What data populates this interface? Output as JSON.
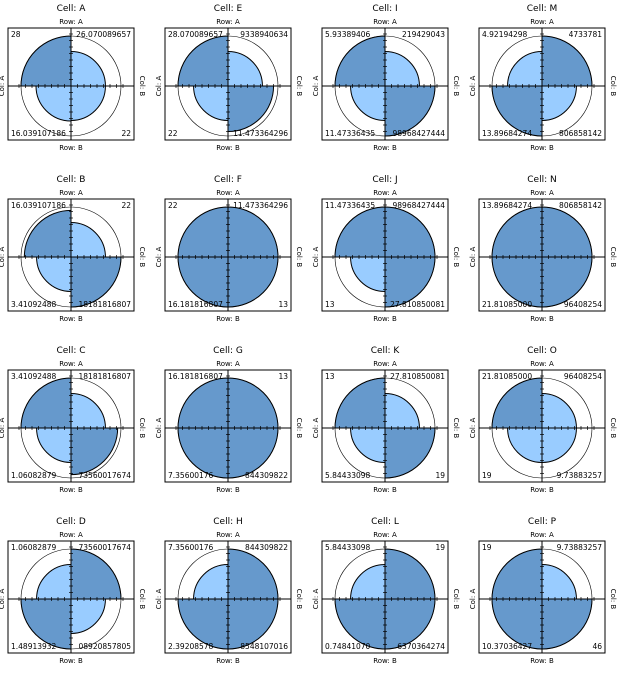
{
  "chart_data": {
    "type": "fourfold",
    "colors": {
      "dark": "#6699cc",
      "light": "#99ccff",
      "frame": "#000000"
    },
    "labels": {
      "row_top": "Row: A",
      "row_bottom": "Row: B",
      "col_left": "Col: A",
      "col_right": "Col: B"
    },
    "grid_order": [
      [
        "A",
        "E",
        "I",
        "M"
      ],
      [
        "B",
        "F",
        "J",
        "N"
      ],
      [
        "C",
        "G",
        "K",
        "O"
      ],
      [
        "D",
        "H",
        "L",
        "P"
      ]
    ],
    "cells": [
      {
        "title": "Cell: A",
        "values": {
          "tl": "28",
          "tr": "26.070089657",
          "bl": "16.039107186",
          "br": "22"
        },
        "quadrant_fraction": {
          "tl": 0.9,
          "tr": 0.62,
          "bl": 0.63,
          "br": 0.62
        }
      },
      {
        "title": "Cell: B",
        "values": {
          "tl": "16.039107186",
          "tr": "22",
          "bl": "3.41092488",
          "br": "18181816807"
        },
        "quadrant_fraction": {
          "tl": 0.84,
          "tr": 0.62,
          "bl": 0.62,
          "br": 0.9
        }
      },
      {
        "title": "Cell: C",
        "values": {
          "tl": "3.41092488",
          "tr": "18181816807",
          "bl": "1.06082879",
          "br": "73560017674"
        },
        "quadrant_fraction": {
          "tl": 0.9,
          "tr": 0.62,
          "bl": 0.62,
          "br": 0.84
        }
      },
      {
        "title": "Cell: D",
        "values": {
          "tl": "1.06082879",
          "tr": "73560017674",
          "bl": "1.48913932",
          "br": "08920857805"
        },
        "quadrant_fraction": {
          "tl": 0.62,
          "tr": 0.9,
          "bl": 0.9,
          "br": 0.62
        }
      },
      {
        "title": "Cell: E",
        "values": {
          "tl": "28.070089657",
          "tr": "9338940634",
          "bl": "22",
          "br": "11.473364296"
        },
        "quadrant_fraction": {
          "tl": 0.9,
          "tr": 0.62,
          "bl": 0.62,
          "br": 0.82
        }
      },
      {
        "title": "Cell: F",
        "values": {
          "tl": "22",
          "tr": "11.473364296",
          "bl": "16.181816807",
          "br": "13"
        },
        "quadrant_fraction": {
          "tl": 0.9,
          "tr": 0.9,
          "bl": 0.9,
          "br": 0.9
        }
      },
      {
        "title": "Cell: G",
        "values": {
          "tl": "16.181816807",
          "tr": "13",
          "bl": "7.35600176",
          "br": "844309822"
        },
        "quadrant_fraction": {
          "tl": 0.9,
          "tr": 0.9,
          "bl": 0.9,
          "br": 0.9
        }
      },
      {
        "title": "Cell: H",
        "values": {
          "tl": "7.35600176",
          "tr": "844309822",
          "bl": "2.39208578",
          "br": "8548107016"
        },
        "quadrant_fraction": {
          "tl": 0.62,
          "tr": 0.9,
          "bl": 0.9,
          "br": 0.9
        }
      },
      {
        "title": "Cell: I",
        "values": {
          "tl": "5.93389406",
          "tr": "219429043",
          "bl": "11.47336435",
          "br": "98968427444"
        },
        "quadrant_fraction": {
          "tl": 0.9,
          "tr": 0.62,
          "bl": 0.62,
          "br": 0.9
        }
      },
      {
        "title": "Cell: J",
        "values": {
          "tl": "11.47336435",
          "tr": "98968427444",
          "bl": "13",
          "br": "27.810850081"
        },
        "quadrant_fraction": {
          "tl": 0.9,
          "tr": 0.9,
          "bl": 0.62,
          "br": 0.9
        }
      },
      {
        "title": "Cell: K",
        "values": {
          "tl": "13",
          "tr": "27.810850081",
          "bl": "5.84433098",
          "br": "19"
        },
        "quadrant_fraction": {
          "tl": 0.9,
          "tr": 0.62,
          "bl": 0.62,
          "br": 0.9
        }
      },
      {
        "title": "Cell: L",
        "values": {
          "tl": "5.84433098",
          "tr": "19",
          "bl": "0.74841070",
          "br": "6370364274"
        },
        "quadrant_fraction": {
          "tl": 0.62,
          "tr": 0.9,
          "bl": 0.9,
          "br": 0.9
        }
      },
      {
        "title": "Cell: M",
        "values": {
          "tl": "4.92194298",
          "tr": "4733781",
          "bl": "13.89684274",
          "br": "806858142"
        },
        "quadrant_fraction": {
          "tl": 0.62,
          "tr": 0.9,
          "bl": 0.9,
          "br": 0.62
        }
      },
      {
        "title": "Cell: N",
        "values": {
          "tl": "13.89684274",
          "tr": "806858142",
          "bl": "21.81085000",
          "br": "96408254"
        },
        "quadrant_fraction": {
          "tl": 0.9,
          "tr": 0.9,
          "bl": 0.9,
          "br": 0.9
        }
      },
      {
        "title": "Cell: O",
        "values": {
          "tl": "21.81085000",
          "tr": "96408254",
          "bl": "19",
          "br": "9.73883257"
        },
        "quadrant_fraction": {
          "tl": 0.9,
          "tr": 0.62,
          "bl": 0.62,
          "br": 0.62
        }
      },
      {
        "title": "Cell: P",
        "values": {
          "tl": "19",
          "tr": "9.73883257",
          "bl": "10.37036427",
          "br": "46"
        },
        "quadrant_fraction": {
          "tl": 0.9,
          "tr": 0.62,
          "bl": 0.9,
          "br": 0.9
        }
      }
    ]
  }
}
